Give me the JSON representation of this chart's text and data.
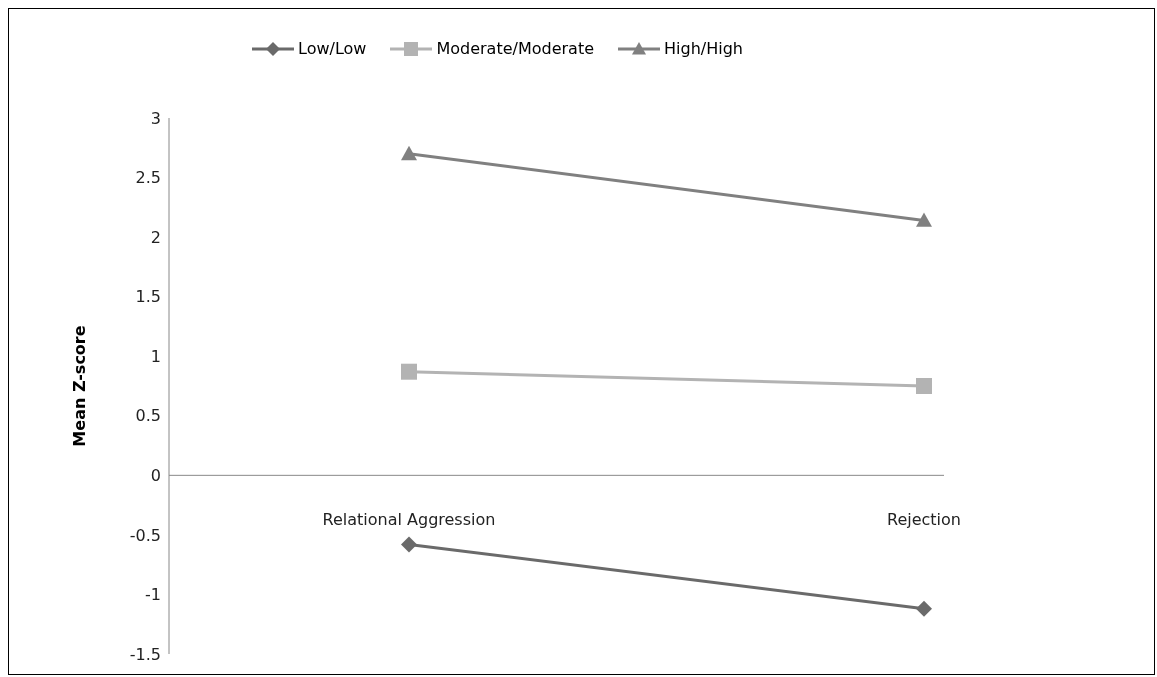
{
  "chart_data": {
    "type": "line",
    "ylabel": "Mean Z-score",
    "categories": [
      "Relational Aggression",
      "Rejection"
    ],
    "series": [
      {
        "name": "Low/Low",
        "color": "#6a6a6a",
        "marker": "diamond",
        "values": [
          -0.58,
          -1.12
        ]
      },
      {
        "name": "Moderate/Moderate",
        "color": "#b3b3b3",
        "marker": "square",
        "values": [
          0.87,
          0.75
        ]
      },
      {
        "name": "High/High",
        "color": "#808080",
        "marker": "triangle",
        "values": [
          2.7,
          2.14
        ]
      }
    ],
    "ylim": [
      -1.5,
      3
    ],
    "yticks": [
      -1.5,
      -1,
      -0.5,
      0,
      0.5,
      1,
      1.5,
      2,
      2.5,
      3
    ],
    "grid": false,
    "legend": "top"
  }
}
